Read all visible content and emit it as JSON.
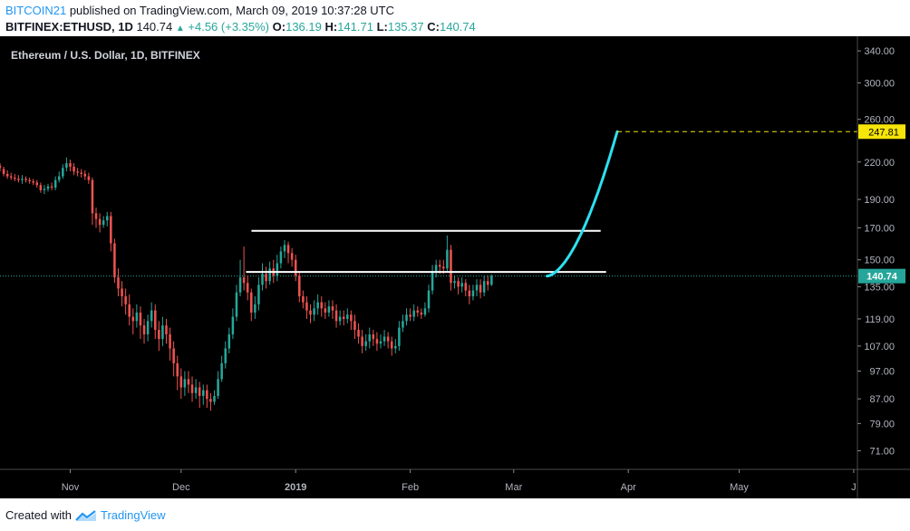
{
  "header": {
    "user": "BITCOIN21",
    "published": "published on TradingView.com, March 09, 2019 10:37:28 UTC",
    "symbol": "BITFINEX:ETHUSD, 1D",
    "last": "140.74",
    "change": "+4.56 (+3.35%)",
    "o_label": "O:",
    "o": "136.19",
    "h_label": "H:",
    "h": "141.71",
    "l_label": "L:",
    "l": "135.37",
    "c_label": "C:",
    "c": "140.74"
  },
  "footer": {
    "created_with": "Created with",
    "brand": "TradingView"
  },
  "colors": {
    "background": "#000000",
    "up": "#26a69a",
    "down": "#ef5350",
    "projection": "#2de0f0",
    "target": "#f5e50a",
    "lines": "#ffffff",
    "price_label": "#26a69a"
  },
  "chart_data": {
    "type": "candlestick",
    "title": "Ethereum / U.S. Dollar, 1D, BITFINEX",
    "y_scale": "log",
    "ylim": [
      66,
      355
    ],
    "y_ticks": [
      340,
      300,
      260,
      220,
      190,
      170,
      150,
      135,
      119,
      107,
      97,
      87,
      79,
      71
    ],
    "y_tick_labels": [
      "340.00",
      "300.00",
      "260.00",
      "220.00",
      "190.00",
      "170.00",
      "150.00",
      "135.00",
      "119.00",
      "107.00",
      "97.00",
      "87.00",
      "79.00",
      "71.00"
    ],
    "x_range": [
      "2018-10-13",
      "2019-06-02"
    ],
    "x_ticks": [
      {
        "date": "2018-11-01",
        "label": "Nov"
      },
      {
        "date": "2018-12-01",
        "label": "Dec"
      },
      {
        "date": "2019-01-01",
        "label": "2019"
      },
      {
        "date": "2019-02-01",
        "label": "Feb"
      },
      {
        "date": "2019-03-01",
        "label": "Mar"
      },
      {
        "date": "2019-04-01",
        "label": "Apr"
      },
      {
        "date": "2019-05-01",
        "label": "May"
      },
      {
        "date": "2019-06-01",
        "label": "J"
      }
    ],
    "candle_start": "2018-10-13",
    "candles": [
      [
        217,
        215,
        219,
        212
      ],
      [
        214,
        210,
        216,
        208
      ],
      [
        210,
        208,
        213,
        206
      ],
      [
        208,
        207,
        211,
        205
      ],
      [
        207,
        206,
        210,
        204
      ],
      [
        206,
        205,
        209,
        203
      ],
      [
        205,
        206,
        209,
        202
      ],
      [
        206,
        205,
        208,
        203
      ],
      [
        205,
        204,
        207,
        202
      ],
      [
        204,
        203,
        206,
        201
      ],
      [
        203,
        201,
        205,
        199
      ],
      [
        201,
        197,
        203,
        195
      ],
      [
        197,
        198,
        201,
        194
      ],
      [
        198,
        200,
        202,
        196
      ],
      [
        200,
        199,
        203,
        197
      ],
      [
        199,
        205,
        208,
        197
      ],
      [
        205,
        208,
        212,
        203
      ],
      [
        208,
        215,
        218,
        206
      ],
      [
        215,
        219,
        224,
        212
      ],
      [
        219,
        216,
        222,
        212
      ],
      [
        216,
        212,
        219,
        209
      ],
      [
        212,
        211,
        215,
        208
      ],
      [
        211,
        210,
        214,
        207
      ],
      [
        210,
        208,
        213,
        205
      ],
      [
        208,
        205,
        211,
        202
      ],
      [
        205,
        180,
        207,
        172
      ],
      [
        180,
        176,
        184,
        170
      ],
      [
        176,
        172,
        180,
        167
      ],
      [
        172,
        175,
        178,
        170
      ],
      [
        175,
        178,
        181,
        171
      ],
      [
        178,
        160,
        181,
        155
      ],
      [
        160,
        140,
        163,
        137
      ],
      [
        140,
        134,
        145,
        130
      ],
      [
        134,
        130,
        138,
        125
      ],
      [
        130,
        126,
        134,
        121
      ],
      [
        126,
        120,
        131,
        116
      ],
      [
        120,
        118,
        124,
        112
      ],
      [
        118,
        122,
        126,
        115
      ],
      [
        122,
        116,
        125,
        110
      ],
      [
        116,
        112,
        119,
        108
      ],
      [
        112,
        118,
        121,
        109
      ],
      [
        118,
        123,
        127,
        115
      ],
      [
        123,
        114,
        126,
        110
      ],
      [
        114,
        110,
        118,
        105
      ],
      [
        110,
        116,
        120,
        107
      ],
      [
        116,
        112,
        119,
        108
      ],
      [
        112,
        106,
        115,
        101
      ],
      [
        106,
        100,
        109,
        95
      ],
      [
        100,
        95,
        103,
        90
      ],
      [
        95,
        91,
        98,
        87
      ],
      [
        91,
        94,
        97,
        88
      ],
      [
        94,
        92,
        97,
        89
      ],
      [
        92,
        89,
        95,
        86
      ],
      [
        89,
        91,
        94,
        87
      ],
      [
        91,
        88,
        93,
        84
      ],
      [
        88,
        90,
        92,
        85
      ],
      [
        90,
        87,
        92,
        84
      ],
      [
        87,
        86,
        89,
        83
      ],
      [
        86,
        88,
        90,
        85
      ],
      [
        88,
        94,
        97,
        87
      ],
      [
        94,
        100,
        103,
        93
      ],
      [
        100,
        106,
        109,
        98
      ],
      [
        106,
        112,
        115,
        104
      ],
      [
        112,
        120,
        124,
        110
      ],
      [
        120,
        132,
        136,
        118
      ],
      [
        132,
        140,
        150,
        130
      ],
      [
        140,
        137,
        158,
        133
      ],
      [
        137,
        132,
        141,
        128
      ],
      [
        132,
        122,
        134,
        118
      ],
      [
        122,
        126,
        130,
        119
      ],
      [
        126,
        136,
        140,
        123
      ],
      [
        136,
        142,
        148,
        133
      ],
      [
        142,
        138,
        146,
        134
      ],
      [
        138,
        145,
        149,
        136
      ],
      [
        145,
        141,
        150,
        137
      ],
      [
        141,
        148,
        153,
        138
      ],
      [
        148,
        155,
        158,
        145
      ],
      [
        155,
        159,
        162,
        151
      ],
      [
        159,
        154,
        161,
        148
      ],
      [
        154,
        150,
        157,
        146
      ],
      [
        150,
        141,
        153,
        138
      ],
      [
        141,
        130,
        143,
        127
      ],
      [
        130,
        127,
        133,
        124
      ],
      [
        127,
        123,
        130,
        119
      ],
      [
        123,
        121,
        126,
        117
      ],
      [
        121,
        124,
        128,
        118
      ],
      [
        124,
        127,
        131,
        121
      ],
      [
        127,
        124,
        130,
        120
      ],
      [
        124,
        122,
        127,
        119
      ],
      [
        122,
        125,
        128,
        120
      ],
      [
        125,
        123,
        128,
        119
      ],
      [
        123,
        118,
        126,
        115
      ],
      [
        118,
        120,
        123,
        116
      ],
      [
        120,
        119,
        123,
        116
      ],
      [
        119,
        121,
        124,
        117
      ],
      [
        121,
        118,
        123,
        114
      ],
      [
        118,
        114,
        121,
        110
      ],
      [
        114,
        111,
        117,
        108
      ],
      [
        111,
        107,
        114,
        104
      ],
      [
        107,
        109,
        112,
        105
      ],
      [
        109,
        112,
        115,
        106
      ],
      [
        112,
        110,
        114,
        107
      ],
      [
        110,
        108,
        113,
        105
      ],
      [
        108,
        109,
        112,
        106
      ],
      [
        109,
        111,
        114,
        107
      ],
      [
        111,
        109,
        113,
        106
      ],
      [
        109,
        106,
        111,
        103
      ],
      [
        106,
        107,
        110,
        104
      ],
      [
        107,
        115,
        118,
        105
      ],
      [
        115,
        118,
        121,
        113
      ],
      [
        118,
        121,
        124,
        116
      ],
      [
        121,
        120,
        124,
        118
      ],
      [
        120,
        123,
        126,
        118
      ],
      [
        123,
        122,
        125,
        120
      ],
      [
        122,
        121,
        124,
        119
      ],
      [
        121,
        124,
        127,
        120
      ],
      [
        124,
        133,
        136,
        122
      ],
      [
        133,
        143,
        147,
        131
      ],
      [
        143,
        147,
        150,
        140
      ],
      [
        147,
        146,
        150,
        142
      ],
      [
        146,
        145,
        150,
        142
      ],
      [
        145,
        156,
        165,
        143
      ],
      [
        156,
        137,
        159,
        133
      ],
      [
        137,
        138,
        141,
        134
      ],
      [
        138,
        135,
        140,
        131
      ],
      [
        135,
        137,
        140,
        132
      ],
      [
        137,
        133,
        139,
        130
      ],
      [
        133,
        130,
        136,
        126
      ],
      [
        130,
        133,
        136,
        128
      ],
      [
        133,
        136,
        139,
        130
      ],
      [
        136,
        132,
        139,
        129
      ],
      [
        132,
        138,
        141,
        130
      ],
      [
        138,
        136,
        141,
        133
      ],
      [
        136,
        140.74,
        141.71,
        135.37
      ]
    ],
    "support_band": {
      "top": 168,
      "bottom": 143,
      "start": "2018-12-22",
      "end": "2019-03-26"
    },
    "projection": {
      "start": "2019-03-10",
      "end": "2019-03-29",
      "from_price": 140.74,
      "to_price": 247.81
    },
    "target_price": 247.81,
    "target_label": "247.81",
    "last_price_label": "140.74"
  }
}
